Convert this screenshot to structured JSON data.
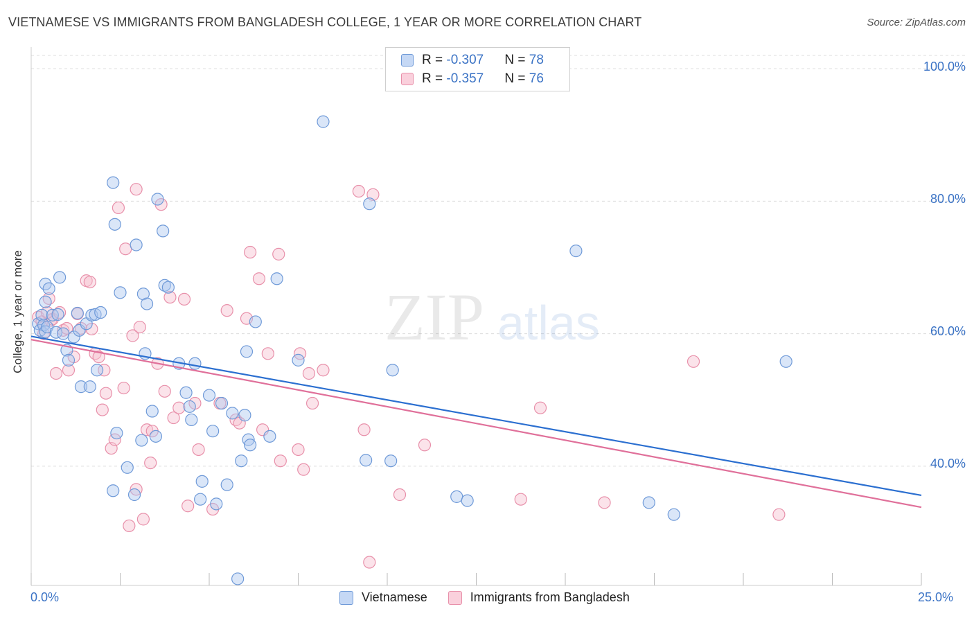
{
  "header": {
    "title": "VIETNAMESE VS IMMIGRANTS FROM BANGLADESH COLLEGE, 1 YEAR OR MORE CORRELATION CHART",
    "source": "Source: ZipAtlas.com"
  },
  "watermark": {
    "zip": "ZIP",
    "atlas": "atlas"
  },
  "legend": {
    "r_label": "R = ",
    "n_label": "N = ",
    "series": [
      {
        "r": "-0.307",
        "n": "78"
      },
      {
        "r": "-0.357",
        "n": "76"
      }
    ]
  },
  "bottom_legend": [
    "Vietnamese",
    "Immigrants from Bangladesh"
  ],
  "colors": {
    "blue_fill": "#aec8f0",
    "blue_stroke": "#6f9ad8",
    "blue_line": "#2b6fd0",
    "pink_fill": "#f7c0d0",
    "pink_stroke": "#e890aa",
    "pink_line": "#e0709a",
    "accent_text": "#3b73c5"
  },
  "chart_data": {
    "type": "scatter",
    "title": "VIETNAMESE VS IMMIGRANTS FROM BANGLADESH COLLEGE, 1 YEAR OR MORE CORRELATION CHART",
    "ylabel": "College, 1 year or more",
    "xlabel": "",
    "xlim": [
      0,
      25
    ],
    "ylim": [
      22,
      102
    ],
    "x_tick_labels": [
      "0.0%",
      "25.0%"
    ],
    "y_tick_values": [
      40,
      60,
      80,
      100
    ],
    "y_tick_labels": [
      "40.0%",
      "60.0%",
      "80.0%",
      "100.0%"
    ],
    "grid": true,
    "legend_position": "top-center",
    "series": [
      {
        "name": "Vietnamese",
        "r": -0.307,
        "n": 78,
        "trend": {
          "x": [
            0,
            25
          ],
          "y": [
            59.6,
            35.6
          ]
        },
        "points": [
          [
            0.2,
            61.5
          ],
          [
            0.25,
            60.5
          ],
          [
            0.3,
            62.8
          ],
          [
            0.35,
            61.3
          ],
          [
            0.4,
            64.8
          ],
          [
            0.4,
            60.3
          ],
          [
            0.45,
            61.0
          ],
          [
            0.4,
            67.5
          ],
          [
            0.5,
            66.8
          ],
          [
            0.6,
            62.8
          ],
          [
            0.7,
            60.2
          ],
          [
            0.75,
            62.9
          ],
          [
            0.8,
            68.5
          ],
          [
            0.9,
            60.0
          ],
          [
            1.0,
            57.5
          ],
          [
            1.05,
            56.0
          ],
          [
            1.2,
            59.5
          ],
          [
            1.3,
            63.1
          ],
          [
            1.35,
            60.5
          ],
          [
            1.4,
            52.0
          ],
          [
            1.55,
            61.5
          ],
          [
            1.65,
            52.0
          ],
          [
            1.7,
            62.8
          ],
          [
            1.8,
            62.9
          ],
          [
            1.85,
            54.5
          ],
          [
            1.95,
            63.2
          ],
          [
            2.3,
            82.8
          ],
          [
            2.35,
            76.5
          ],
          [
            2.4,
            45.0
          ],
          [
            2.5,
            66.2
          ],
          [
            2.95,
            73.4
          ],
          [
            3.15,
            66.0
          ],
          [
            3.2,
            57.0
          ],
          [
            3.25,
            64.5
          ],
          [
            3.4,
            48.3
          ],
          [
            3.5,
            44.5
          ],
          [
            3.55,
            80.3
          ],
          [
            3.7,
            75.5
          ],
          [
            3.75,
            67.3
          ],
          [
            3.85,
            67.0
          ],
          [
            4.15,
            55.5
          ],
          [
            4.35,
            51.1
          ],
          [
            4.45,
            49.0
          ],
          [
            4.6,
            55.5
          ],
          [
            4.75,
            35.0
          ],
          [
            4.8,
            37.7
          ],
          [
            5.0,
            50.7
          ],
          [
            5.1,
            45.3
          ],
          [
            5.2,
            34.3
          ],
          [
            5.35,
            49.5
          ],
          [
            5.5,
            37.2
          ],
          [
            5.65,
            48.0
          ],
          [
            5.9,
            40.8
          ],
          [
            6.0,
            47.7
          ],
          [
            6.05,
            57.3
          ],
          [
            6.1,
            44.0
          ],
          [
            6.15,
            43.2
          ],
          [
            6.3,
            61.8
          ],
          [
            6.7,
            44.5
          ],
          [
            6.9,
            68.3
          ],
          [
            7.5,
            56.0
          ],
          [
            8.2,
            92.0
          ],
          [
            9.4,
            40.9
          ],
          [
            9.5,
            79.6
          ],
          [
            10.1,
            40.8
          ],
          [
            10.15,
            54.5
          ],
          [
            11.95,
            35.4
          ],
          [
            12.25,
            34.8
          ],
          [
            15.3,
            72.5
          ],
          [
            17.35,
            34.5
          ],
          [
            18.05,
            32.7
          ],
          [
            21.2,
            55.8
          ],
          [
            2.9,
            35.7
          ],
          [
            2.7,
            39.8
          ],
          [
            2.3,
            36.3
          ],
          [
            4.5,
            47.0
          ],
          [
            3.1,
            43.9
          ],
          [
            5.8,
            23.0
          ]
        ]
      },
      {
        "name": "Immigrants from Bangladesh",
        "r": -0.357,
        "n": 76,
        "trend": {
          "x": [
            0,
            25
          ],
          "y": [
            59.1,
            33.8
          ]
        },
        "points": [
          [
            0.2,
            62.5
          ],
          [
            0.3,
            61.8
          ],
          [
            0.35,
            60.0
          ],
          [
            0.5,
            65.3
          ],
          [
            0.55,
            62.0
          ],
          [
            0.6,
            62.2
          ],
          [
            0.7,
            54.0
          ],
          [
            0.8,
            63.2
          ],
          [
            0.9,
            60.5
          ],
          [
            1.0,
            60.8
          ],
          [
            1.05,
            54.5
          ],
          [
            1.2,
            56.5
          ],
          [
            1.3,
            63.0
          ],
          [
            1.4,
            60.8
          ],
          [
            1.55,
            68.0
          ],
          [
            1.7,
            60.7
          ],
          [
            1.8,
            57.0
          ],
          [
            1.9,
            56.5
          ],
          [
            2.0,
            48.5
          ],
          [
            2.05,
            54.5
          ],
          [
            2.1,
            51.0
          ],
          [
            2.25,
            42.7
          ],
          [
            2.35,
            44.0
          ],
          [
            2.45,
            79.0
          ],
          [
            2.6,
            51.8
          ],
          [
            2.65,
            72.8
          ],
          [
            2.75,
            31.0
          ],
          [
            2.85,
            59.7
          ],
          [
            2.95,
            81.8
          ],
          [
            3.05,
            61.0
          ],
          [
            3.15,
            32.0
          ],
          [
            3.25,
            45.5
          ],
          [
            3.35,
            40.5
          ],
          [
            3.4,
            45.3
          ],
          [
            3.55,
            55.5
          ],
          [
            3.65,
            79.5
          ],
          [
            3.75,
            51.3
          ],
          [
            3.9,
            65.5
          ],
          [
            4.0,
            47.3
          ],
          [
            4.15,
            48.8
          ],
          [
            4.3,
            65.2
          ],
          [
            4.4,
            34.0
          ],
          [
            4.6,
            49.5
          ],
          [
            4.7,
            42.5
          ],
          [
            5.1,
            33.5
          ],
          [
            5.3,
            49.5
          ],
          [
            5.5,
            63.5
          ],
          [
            5.75,
            47.0
          ],
          [
            5.85,
            46.5
          ],
          [
            6.05,
            62.3
          ],
          [
            6.15,
            72.3
          ],
          [
            6.4,
            68.3
          ],
          [
            6.5,
            45.5
          ],
          [
            6.65,
            57.0
          ],
          [
            6.95,
            72.0
          ],
          [
            7.0,
            40.8
          ],
          [
            7.5,
            42.5
          ],
          [
            7.55,
            57.0
          ],
          [
            7.65,
            39.5
          ],
          [
            7.8,
            54.0
          ],
          [
            7.9,
            49.5
          ],
          [
            8.2,
            54.5
          ],
          [
            9.2,
            81.5
          ],
          [
            9.35,
            45.5
          ],
          [
            9.5,
            25.5
          ],
          [
            9.6,
            81.0
          ],
          [
            10.35,
            35.7
          ],
          [
            11.05,
            43.2
          ],
          [
            13.75,
            35.0
          ],
          [
            14.3,
            48.8
          ],
          [
            16.1,
            34.5
          ],
          [
            18.6,
            55.8
          ],
          [
            21.0,
            32.7
          ],
          [
            1.65,
            67.8
          ],
          [
            2.95,
            36.5
          ],
          [
            0.45,
            63.2
          ]
        ]
      }
    ]
  }
}
